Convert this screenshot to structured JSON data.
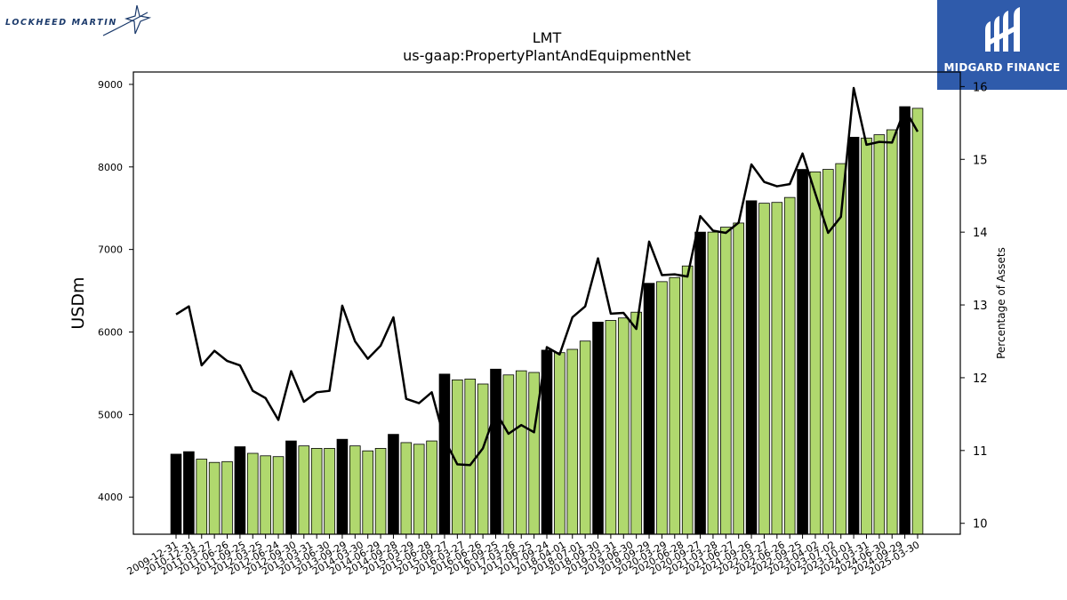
{
  "branding": {
    "left_logo_text": "LOCKHEED MARTIN",
    "right_logo_text": "MIDGARD FINANCE",
    "right_logo_color": "#2f5bab"
  },
  "chart_data": {
    "type": "bar",
    "title": "LMT",
    "subtitle": "us-gaap:PropertyPlantAndEquipmentNet",
    "ylabel": "USDm",
    "y2label": "Percentage of Assets",
    "ylim": [
      3550,
      9150
    ],
    "y2lim": [
      9.85,
      16.2
    ],
    "yticks": [
      4000,
      5000,
      6000,
      7000,
      8000,
      9000
    ],
    "y2ticks": [
      10,
      11,
      12,
      13,
      14,
      15,
      16
    ],
    "x_labels_visible": [
      "2009-12-31",
      "2010-12-31",
      "2011-03-27",
      "2011-06-26",
      "2011-09-25",
      "2012-03-25",
      "2012-06-24",
      "2012-09-30",
      "2013-03-31",
      "2013-06-30",
      "2013-09-29",
      "2014-03-30",
      "2014-06-29",
      "2014-09-28",
      "2015-03-29",
      "2015-06-28",
      "2015-09-27",
      "2016-03-27",
      "2016-06-26",
      "2016-09-25",
      "2017-03-26",
      "2017-06-25",
      "2017-09-24",
      "2018-04-01",
      "2018-07-01",
      "2018-09-30",
      "2019-03-31",
      "2019-06-30",
      "2019-09-29",
      "2020-03-29",
      "2020-06-28",
      "2020-09-27",
      "2021-03-28",
      "2021-06-27",
      "2021-09-26",
      "2022-03-27",
      "2022-06-26",
      "2022-09-25",
      "2023-04-02",
      "2023-07-02",
      "2023-10-01",
      "2024-03-31",
      "2024-06-30",
      "2024-09-29",
      "2025-03-30"
    ],
    "bar_colors": {
      "annual": "#000000",
      "quarterly": "#b0d86e"
    },
    "line_color": "#000000",
    "series": [
      {
        "values": [
          4520,
          4550,
          4460,
          4420,
          4430,
          4610,
          4530,
          4500,
          4490,
          4680,
          4620,
          4590,
          4590,
          4700,
          4620,
          4560,
          4590,
          4760,
          4660,
          4640,
          4680,
          5490,
          5420,
          5430,
          5370,
          5550,
          5480,
          5530,
          5510,
          5780,
          5750,
          5790,
          5890,
          6120,
          6140,
          6170,
          6240,
          6590,
          6610,
          6660,
          6800,
          7210,
          7210,
          7270,
          7320,
          7590,
          7560,
          7570,
          7630,
          7970,
          7940,
          7970,
          8040,
          8360,
          8350,
          8390,
          8450,
          8730,
          8710
        ]
      },
      {
        "values": [
          12.87,
          12.98,
          12.17,
          12.37,
          12.23,
          12.17,
          11.82,
          11.72,
          11.42,
          12.09,
          11.67,
          11.8,
          11.82,
          12.99,
          12.5,
          12.26,
          12.44,
          12.83,
          11.71,
          11.65,
          11.8,
          11.15,
          10.81,
          10.8,
          11.03,
          11.53,
          11.23,
          11.35,
          11.25,
          12.42,
          12.32,
          12.83,
          12.98,
          13.64,
          12.88,
          12.89,
          12.67,
          13.87,
          13.41,
          13.42,
          13.39,
          14.22,
          14.02,
          13.99,
          14.13,
          14.93,
          14.69,
          14.63,
          14.66,
          15.08,
          14.53,
          13.99,
          14.21,
          15.98,
          15.2,
          15.24,
          15.23,
          15.69,
          15.38
        ]
      }
    ],
    "bar_type": [
      "A",
      "A",
      "Q",
      "Q",
      "Q",
      "A",
      "Q",
      "Q",
      "Q",
      "A",
      "Q",
      "Q",
      "Q",
      "A",
      "Q",
      "Q",
      "Q",
      "A",
      "Q",
      "Q",
      "Q",
      "A",
      "Q",
      "Q",
      "Q",
      "A",
      "Q",
      "Q",
      "Q",
      "A",
      "Q",
      "Q",
      "Q",
      "A",
      "Q",
      "Q",
      "Q",
      "A",
      "Q",
      "Q",
      "Q",
      "A",
      "Q",
      "Q",
      "Q",
      "A",
      "Q",
      "Q",
      "Q",
      "A",
      "Q",
      "Q",
      "Q",
      "A",
      "Q",
      "Q",
      "Q",
      "A",
      "Q"
    ]
  }
}
